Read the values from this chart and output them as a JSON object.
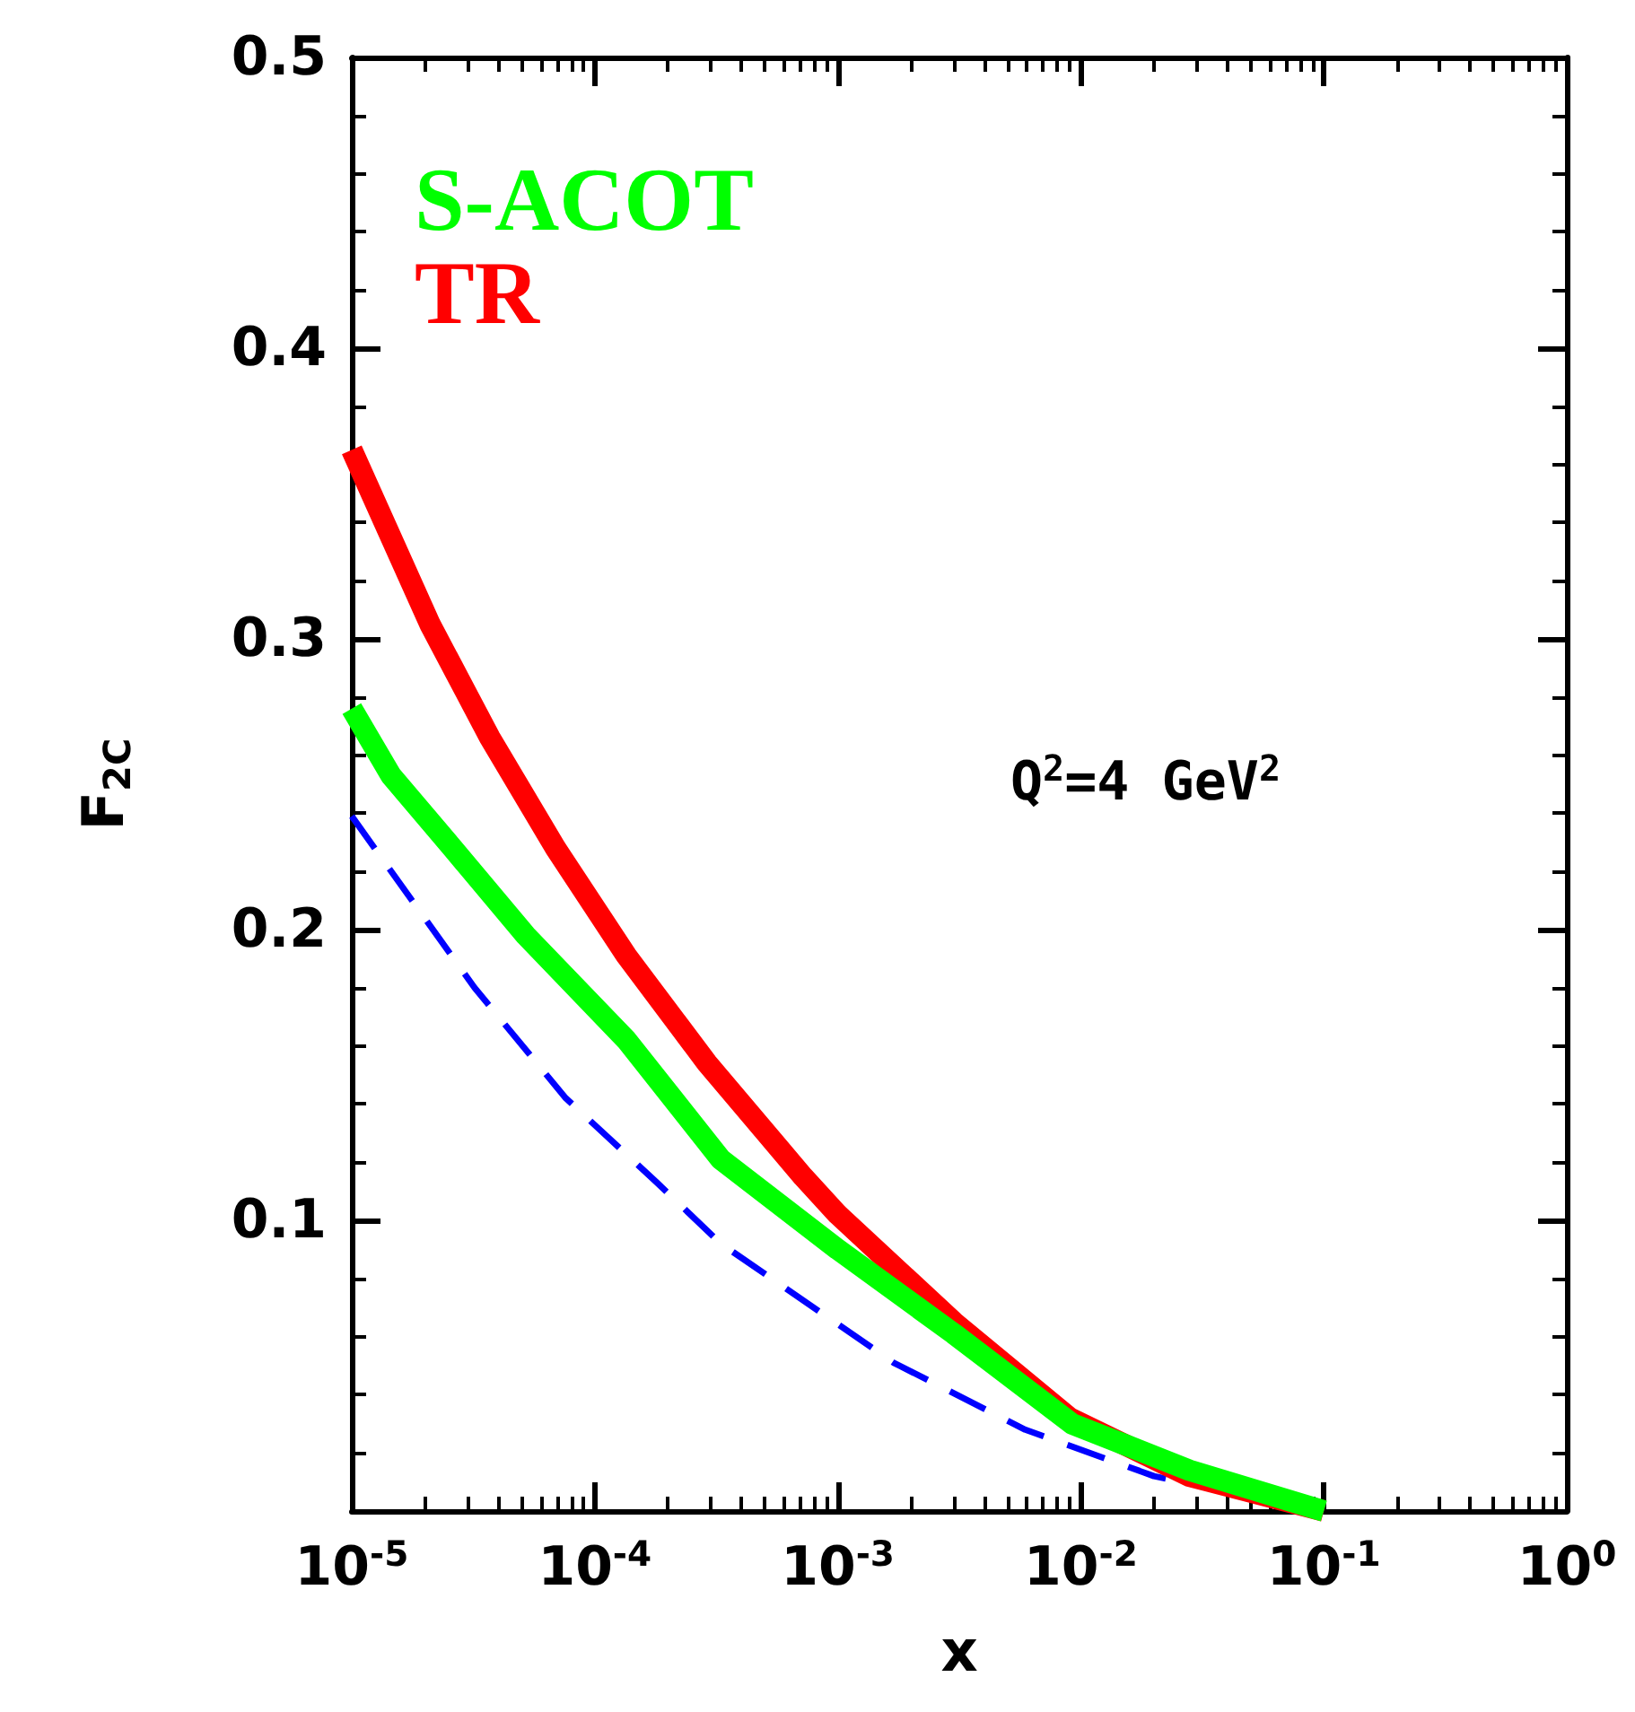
{
  "chart_data": {
    "type": "line",
    "xlabel": "x",
    "ylabel": "F$_{2C}$",
    "log": "x",
    "xlim": [
      1e-05,
      1
    ],
    "ylim": [
      0,
      0.5
    ],
    "xticks": [
      {
        "value": 1e-05,
        "label": "10$^{-5}$"
      },
      {
        "value": 0.0001,
        "label": "10$^{-4}$"
      },
      {
        "value": 0.001,
        "label": "10$^{-3}$"
      },
      {
        "value": 0.01,
        "label": "10$^{-2}$"
      },
      {
        "value": 0.1,
        "label": "10$^{-1}$"
      },
      {
        "value": 1,
        "label": "10$^{0}$"
      }
    ],
    "yticks": [
      {
        "value": 0,
        "label": null
      },
      0.1,
      0.2,
      0.3,
      0.4,
      0.5
    ],
    "legend": "top left",
    "marker": "none",
    "grid": false,
    "annotations": [
      "Q$^{2}$=4 GeV$^{2}$"
    ],
    "series": [
      {
        "name": "S-ACOT",
        "color": "#00ff00",
        "line_style": "solid",
        "x": [
          1e-05,
          1.45e-05,
          2.6e-05,
          5.2e-05,
          0.000135,
          0.00033,
          0.001,
          0.003,
          0.0092,
          0.028,
          0.1
        ],
        "values": [
          0.276,
          0.253,
          0.228,
          0.198,
          0.162,
          0.121,
          0.09,
          0.061,
          0.03,
          0.014,
          0
        ]
      },
      {
        "name": "TR",
        "color": "#ff0000",
        "line_style": "solid",
        "x": [
          1e-05,
          2.1e-05,
          3.7e-05,
          6.9e-05,
          0.000135,
          0.00029,
          0.00072,
          0.001,
          0.003,
          0.009,
          0.028,
          0.1
        ],
        "values": [
          0.365,
          0.305,
          0.266,
          0.228,
          0.191,
          0.154,
          0.115,
          0.102,
          0.065,
          0.032,
          0.012,
          0
        ]
      },
      {
        "color": "#0000ff",
        "line_style": "dashed",
        "x": [
          1e-05,
          3.2e-05,
          7.6e-05,
          0.00018,
          0.00033,
          0.0017,
          0.0059,
          0.02,
          0.1
        ],
        "values": [
          0.239,
          0.18,
          0.142,
          0.113,
          0.092,
          0.051,
          0.028,
          0.012,
          0
        ]
      }
    ]
  }
}
